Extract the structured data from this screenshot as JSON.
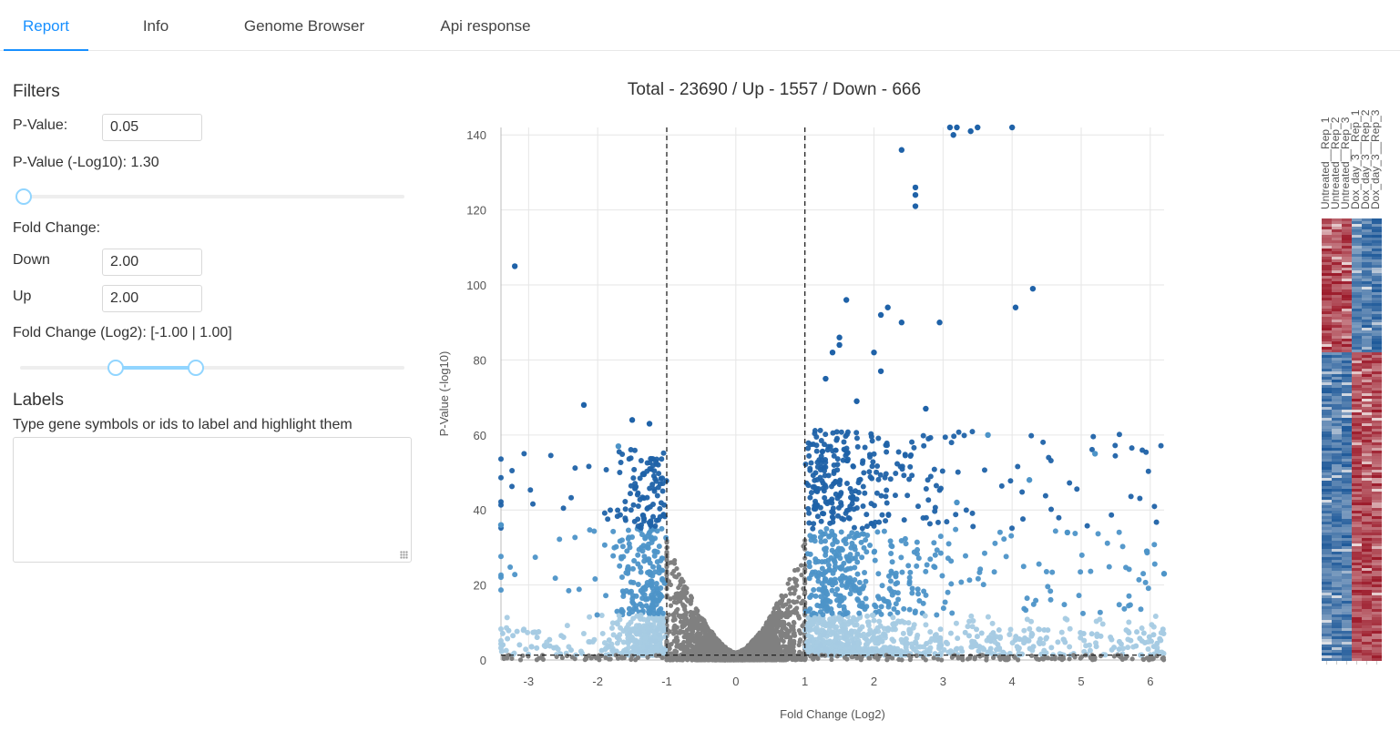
{
  "tabs": [
    {
      "label": "Report",
      "active": true
    },
    {
      "label": "Info",
      "active": false
    },
    {
      "label": "Genome Browser",
      "active": false
    },
    {
      "label": "Api response",
      "active": false
    }
  ],
  "filters": {
    "heading": "Filters",
    "pvalue_label": "P-Value:",
    "pvalue_value": "0.05",
    "pvalue_log_label": "P-Value (-Log10): 1.30",
    "pvalue_slider_fraction": 0.0,
    "fold_change_label": "Fold Change:",
    "down_label": "Down",
    "down_value": "2.00",
    "up_label": "Up",
    "up_value": "2.00",
    "fold_log2_label": "Fold Change (Log2): [-1.00 | 1.00]",
    "fold_slider_range": [
      -1.0,
      1.0
    ]
  },
  "labels": {
    "heading": "Labels",
    "hint": "Type gene symbols or ids to label and highlight them",
    "textarea_value": ""
  },
  "chart_data": {
    "type": "scatter",
    "title": "Total - 23690 / Up - 1557 / Down - 666",
    "xlabel": "Fold Change (Log2)",
    "ylabel": "P-Value (-log10)",
    "xlim": [
      -3.4,
      6.2
    ],
    "ylim": [
      0,
      142
    ],
    "xticks": [
      -3,
      -2,
      -1,
      0,
      1,
      2,
      3,
      4,
      5,
      6
    ],
    "yticks": [
      0,
      20,
      40,
      60,
      80,
      100,
      120,
      140
    ],
    "grid": true,
    "thresholds": {
      "fold_change_log2": [
        -1,
        1
      ],
      "pvalue_log10": 1.3
    },
    "colors": {
      "not_significant": "#808080",
      "significant_low": "#a6cbe3",
      "significant_mid": "#4d94c8",
      "significant_high": "#1f62a8",
      "threshold_line": "#222222"
    },
    "highlight_points": [
      {
        "x": -3.4,
        "y": 36
      },
      {
        "x": -3.2,
        "y": 105
      },
      {
        "x": -2.2,
        "y": 68
      },
      {
        "x": -1.5,
        "y": 64
      },
      {
        "x": -1.25,
        "y": 63
      },
      {
        "x": -1.7,
        "y": 57
      },
      {
        "x": 2.4,
        "y": 136
      },
      {
        "x": 2.6,
        "y": 126
      },
      {
        "x": 2.6,
        "y": 124
      },
      {
        "x": 2.6,
        "y": 121
      },
      {
        "x": 3.1,
        "y": 142
      },
      {
        "x": 3.15,
        "y": 140
      },
      {
        "x": 3.2,
        "y": 142
      },
      {
        "x": 3.4,
        "y": 141
      },
      {
        "x": 3.5,
        "y": 142
      },
      {
        "x": 4.0,
        "y": 142
      },
      {
        "x": 1.6,
        "y": 96
      },
      {
        "x": 2.1,
        "y": 92
      },
      {
        "x": 2.2,
        "y": 94
      },
      {
        "x": 2.4,
        "y": 90
      },
      {
        "x": 2.95,
        "y": 90
      },
      {
        "x": 4.3,
        "y": 99
      },
      {
        "x": 4.05,
        "y": 94
      },
      {
        "x": 1.5,
        "y": 86
      },
      {
        "x": 1.5,
        "y": 84
      },
      {
        "x": 1.4,
        "y": 82
      },
      {
        "x": 2.0,
        "y": 82
      },
      {
        "x": 2.1,
        "y": 77
      },
      {
        "x": 1.3,
        "y": 75
      },
      {
        "x": 1.75,
        "y": 69
      },
      {
        "x": 3.65,
        "y": 60
      },
      {
        "x": 5.2,
        "y": 55
      },
      {
        "x": 4.25,
        "y": 48
      },
      {
        "x": 2.75,
        "y": 67
      },
      {
        "x": 3.2,
        "y": 42
      },
      {
        "x": 5.95,
        "y": 29
      },
      {
        "x": 4.8,
        "y": 34
      },
      {
        "x": 6.2,
        "y": 23
      }
    ]
  },
  "heatmap": {
    "columns": [
      "Untreated__Rep_1",
      "Untreated__Rep_2",
      "Untreated__Rep_3",
      "Dox_day_3__Rep_1",
      "Dox_day_3__Rep_2",
      "Dox_day_3__Rep_3"
    ],
    "colors": {
      "high": "#9c1a2a",
      "low": "#1f5a9a",
      "mid": "#f4f0ee"
    }
  }
}
